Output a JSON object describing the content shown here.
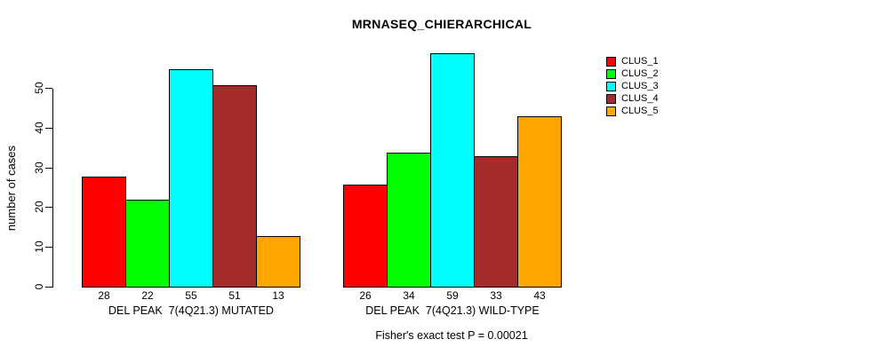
{
  "title": "MRNASEQ_CHIERARCHICAL",
  "footer": "Fisher's exact test P = 0.00021",
  "chart_data": {
    "type": "bar",
    "title": "MRNASEQ_CHIERARCHICAL",
    "ylabel": "number of cases",
    "xlabel": "",
    "categories": [
      "DEL PEAK  7(4Q21.3) MUTATED",
      "DEL PEAK  7(4Q21.3) WILD-TYPE"
    ],
    "series": [
      {
        "name": "CLUS_1",
        "color": "#FF0000",
        "values": [
          28,
          26
        ]
      },
      {
        "name": "CLUS_2",
        "color": "#00FF00",
        "values": [
          22,
          34
        ]
      },
      {
        "name": "CLUS_3",
        "color": "#00FFFF",
        "values": [
          55,
          59
        ]
      },
      {
        "name": "CLUS_4",
        "color": "#A52A2A",
        "values": [
          51,
          33
        ]
      },
      {
        "name": "CLUS_5",
        "color": "#FFA500",
        "values": [
          13,
          43
        ]
      }
    ],
    "yticks": [
      0,
      10,
      20,
      30,
      40,
      50
    ],
    "ylim": [
      0,
      59
    ],
    "grid": false,
    "legend_position": "right",
    "bar_value_labels_shown": true,
    "annotation": "Fisher's exact test P = 0.00021",
    "background_color": "#FFFFFF",
    "axis_color": "#000000"
  }
}
